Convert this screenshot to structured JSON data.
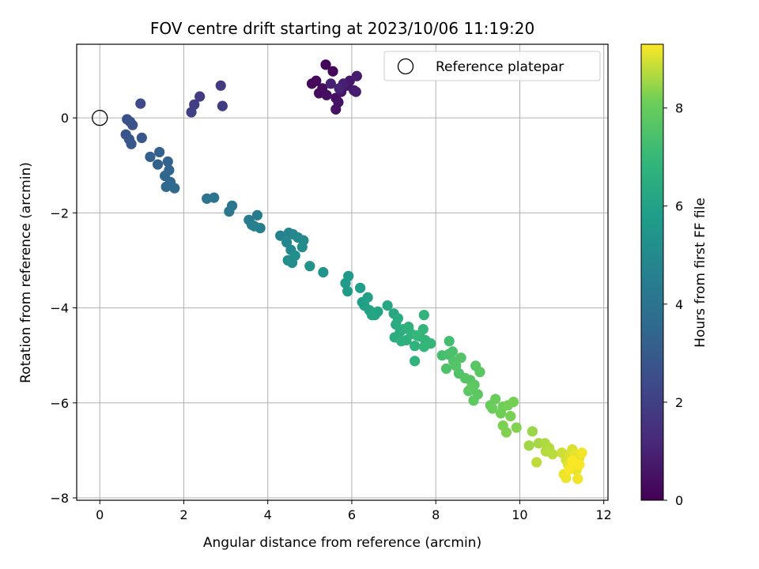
{
  "chart_data": {
    "type": "scatter",
    "title": "FOV centre drift starting at 2023/10/06 11:19:20",
    "xlabel": "Angular distance from reference (arcmin)",
    "ylabel": "Rotation from reference (arcmin)",
    "colorbar_label": "Hours from first FF file",
    "xlim": [
      -0.55,
      12.1
    ],
    "ylim": [
      -8.05,
      1.55
    ],
    "clim": [
      0,
      9.3
    ],
    "x_ticks": [
      0,
      2,
      4,
      6,
      8,
      10,
      12
    ],
    "y_ticks": [
      -8,
      -6,
      -4,
      -2,
      0
    ],
    "colorbar_ticks": [
      0,
      2,
      4,
      6,
      8
    ],
    "grid": true,
    "colormap": "viridis",
    "legend": {
      "placement": "top-right",
      "entries": [
        {
          "label": "Reference platepar",
          "marker": "open-circle",
          "color": "#000000"
        }
      ]
    },
    "reference_point": {
      "x": 0,
      "y": 0
    },
    "points": [
      {
        "x": 5.38,
        "y": 1.12,
        "t": 0.1
      },
      {
        "x": 5.55,
        "y": 0.98,
        "t": 0.15
      },
      {
        "x": 5.05,
        "y": 0.72,
        "t": 0.2
      },
      {
        "x": 5.15,
        "y": 0.78,
        "t": 0.25
      },
      {
        "x": 5.3,
        "y": 0.62,
        "t": 0.3
      },
      {
        "x": 5.22,
        "y": 0.52,
        "t": 0.35
      },
      {
        "x": 5.4,
        "y": 0.48,
        "t": 0.4
      },
      {
        "x": 5.62,
        "y": 0.42,
        "t": 0.45
      },
      {
        "x": 5.68,
        "y": 0.33,
        "t": 0.5
      },
      {
        "x": 5.62,
        "y": 0.18,
        "t": 0.55
      },
      {
        "x": 5.75,
        "y": 0.55,
        "t": 0.6
      },
      {
        "x": 5.88,
        "y": 0.68,
        "t": 0.65
      },
      {
        "x": 5.95,
        "y": 0.78,
        "t": 0.7
      },
      {
        "x": 6.05,
        "y": 0.58,
        "t": 0.75
      },
      {
        "x": 6.12,
        "y": 0.88,
        "t": 0.8
      },
      {
        "x": 6.1,
        "y": 0.55,
        "t": 0.85
      },
      {
        "x": 5.8,
        "y": 0.72,
        "t": 0.9
      },
      {
        "x": 5.5,
        "y": 0.72,
        "t": 0.95
      },
      {
        "x": 5.7,
        "y": 0.62,
        "t": 1.0
      },
      {
        "x": 2.88,
        "y": 0.68,
        "t": 1.8
      },
      {
        "x": 2.92,
        "y": 0.25,
        "t": 1.85
      },
      {
        "x": 2.38,
        "y": 0.45,
        "t": 1.9
      },
      {
        "x": 2.25,
        "y": 0.28,
        "t": 1.95
      },
      {
        "x": 2.18,
        "y": 0.12,
        "t": 2.0
      },
      {
        "x": 0.97,
        "y": 0.3,
        "t": 2.4
      },
      {
        "x": 0.65,
        "y": -0.03,
        "t": 2.6
      },
      {
        "x": 0.72,
        "y": -0.08,
        "t": 2.65
      },
      {
        "x": 0.78,
        "y": -0.15,
        "t": 2.7
      },
      {
        "x": 0.62,
        "y": -0.35,
        "t": 2.75
      },
      {
        "x": 0.7,
        "y": -0.45,
        "t": 2.8
      },
      {
        "x": 0.75,
        "y": -0.55,
        "t": 2.85
      },
      {
        "x": 1.0,
        "y": -0.42,
        "t": 2.9
      },
      {
        "x": 1.2,
        "y": -0.82,
        "t": 3.2
      },
      {
        "x": 1.42,
        "y": -0.72,
        "t": 3.25
      },
      {
        "x": 1.38,
        "y": -0.98,
        "t": 3.3
      },
      {
        "x": 1.62,
        "y": -0.92,
        "t": 3.35
      },
      {
        "x": 1.65,
        "y": -1.1,
        "t": 3.4
      },
      {
        "x": 1.55,
        "y": -1.22,
        "t": 3.45
      },
      {
        "x": 1.68,
        "y": -1.35,
        "t": 3.5
      },
      {
        "x": 1.58,
        "y": -1.45,
        "t": 3.55
      },
      {
        "x": 1.78,
        "y": -1.48,
        "t": 3.6
      },
      {
        "x": 2.55,
        "y": -1.7,
        "t": 3.95
      },
      {
        "x": 2.72,
        "y": -1.68,
        "t": 4.0
      },
      {
        "x": 3.15,
        "y": -1.85,
        "t": 4.1
      },
      {
        "x": 3.08,
        "y": -1.97,
        "t": 4.15
      },
      {
        "x": 3.55,
        "y": -2.15,
        "t": 4.35
      },
      {
        "x": 3.75,
        "y": -2.05,
        "t": 4.4
      },
      {
        "x": 3.62,
        "y": -2.25,
        "t": 4.45
      },
      {
        "x": 3.82,
        "y": -2.32,
        "t": 4.5
      },
      {
        "x": 3.68,
        "y": -2.28,
        "t": 4.55
      },
      {
        "x": 4.3,
        "y": -2.48,
        "t": 4.7
      },
      {
        "x": 4.5,
        "y": -2.42,
        "t": 4.75
      },
      {
        "x": 4.6,
        "y": -2.45,
        "t": 4.8
      },
      {
        "x": 4.45,
        "y": -2.62,
        "t": 4.85
      },
      {
        "x": 4.55,
        "y": -2.78,
        "t": 4.9
      },
      {
        "x": 4.72,
        "y": -2.52,
        "t": 4.95
      },
      {
        "x": 4.85,
        "y": -2.58,
        "t": 5.0
      },
      {
        "x": 4.82,
        "y": -2.72,
        "t": 5.05
      },
      {
        "x": 4.48,
        "y": -3.0,
        "t": 5.1
      },
      {
        "x": 4.58,
        "y": -3.05,
        "t": 5.15
      },
      {
        "x": 4.65,
        "y": -2.9,
        "t": 5.2
      },
      {
        "x": 5.0,
        "y": -3.12,
        "t": 5.3
      },
      {
        "x": 5.32,
        "y": -3.25,
        "t": 5.4
      },
      {
        "x": 5.92,
        "y": -3.33,
        "t": 5.6
      },
      {
        "x": 5.85,
        "y": -3.48,
        "t": 5.65
      },
      {
        "x": 5.9,
        "y": -3.65,
        "t": 5.7
      },
      {
        "x": 6.2,
        "y": -3.58,
        "t": 5.8
      },
      {
        "x": 6.25,
        "y": -3.88,
        "t": 5.85
      },
      {
        "x": 6.3,
        "y": -3.95,
        "t": 5.9
      },
      {
        "x": 6.38,
        "y": -3.78,
        "t": 5.95
      },
      {
        "x": 6.42,
        "y": -4.05,
        "t": 6.0
      },
      {
        "x": 6.55,
        "y": -4.15,
        "t": 6.05
      },
      {
        "x": 6.62,
        "y": -4.08,
        "t": 6.1
      },
      {
        "x": 6.48,
        "y": -4.15,
        "t": 6.15
      },
      {
        "x": 6.85,
        "y": -3.95,
        "t": 6.25
      },
      {
        "x": 7.0,
        "y": -4.12,
        "t": 6.3
      },
      {
        "x": 7.1,
        "y": -4.22,
        "t": 6.35
      },
      {
        "x": 7.05,
        "y": -4.35,
        "t": 6.4
      },
      {
        "x": 7.15,
        "y": -4.5,
        "t": 6.45
      },
      {
        "x": 7.02,
        "y": -4.62,
        "t": 6.5
      },
      {
        "x": 7.22,
        "y": -4.45,
        "t": 6.55
      },
      {
        "x": 7.3,
        "y": -4.68,
        "t": 6.6
      },
      {
        "x": 7.18,
        "y": -4.7,
        "t": 6.62
      },
      {
        "x": 7.35,
        "y": -4.4,
        "t": 6.65
      },
      {
        "x": 7.42,
        "y": -4.55,
        "t": 6.7
      },
      {
        "x": 7.5,
        "y": -4.8,
        "t": 6.72
      },
      {
        "x": 7.62,
        "y": -4.6,
        "t": 6.75
      },
      {
        "x": 7.5,
        "y": -5.12,
        "t": 6.78
      },
      {
        "x": 7.72,
        "y": -4.15,
        "t": 6.8
      },
      {
        "x": 7.7,
        "y": -4.45,
        "t": 6.85
      },
      {
        "x": 7.75,
        "y": -4.68,
        "t": 6.88
      },
      {
        "x": 7.72,
        "y": -4.82,
        "t": 6.9
      },
      {
        "x": 7.88,
        "y": -4.75,
        "t": 6.95
      },
      {
        "x": 7.55,
        "y": -4.58,
        "t": 6.98
      },
      {
        "x": 8.32,
        "y": -4.7,
        "t": 7.3
      },
      {
        "x": 8.15,
        "y": -5.0,
        "t": 7.35
      },
      {
        "x": 8.3,
        "y": -4.98,
        "t": 7.4
      },
      {
        "x": 8.4,
        "y": -4.92,
        "t": 7.45
      },
      {
        "x": 8.25,
        "y": -5.28,
        "t": 7.5
      },
      {
        "x": 8.42,
        "y": -5.12,
        "t": 7.52
      },
      {
        "x": 8.55,
        "y": -5.38,
        "t": 7.55
      },
      {
        "x": 8.6,
        "y": -5.05,
        "t": 7.6
      },
      {
        "x": 8.48,
        "y": -5.22,
        "t": 7.62
      },
      {
        "x": 8.7,
        "y": -5.48,
        "t": 7.65
      },
      {
        "x": 8.82,
        "y": -5.52,
        "t": 7.68
      },
      {
        "x": 8.95,
        "y": -5.22,
        "t": 7.7
      },
      {
        "x": 9.05,
        "y": -5.35,
        "t": 7.72
      },
      {
        "x": 8.78,
        "y": -5.75,
        "t": 7.75
      },
      {
        "x": 8.92,
        "y": -5.62,
        "t": 7.78
      },
      {
        "x": 9.0,
        "y": -5.82,
        "t": 7.8
      },
      {
        "x": 8.9,
        "y": -5.95,
        "t": 7.82
      },
      {
        "x": 8.85,
        "y": -5.68,
        "t": 7.84
      },
      {
        "x": 9.3,
        "y": -6.05,
        "t": 8.0
      },
      {
        "x": 9.42,
        "y": -5.92,
        "t": 8.05
      },
      {
        "x": 9.35,
        "y": -6.12,
        "t": 8.08
      },
      {
        "x": 9.6,
        "y": -6.08,
        "t": 8.12
      },
      {
        "x": 9.55,
        "y": -6.22,
        "t": 8.15
      },
      {
        "x": 9.72,
        "y": -6.05,
        "t": 8.18
      },
      {
        "x": 9.85,
        "y": -5.98,
        "t": 8.2
      },
      {
        "x": 9.78,
        "y": -6.28,
        "t": 8.22
      },
      {
        "x": 9.6,
        "y": -6.48,
        "t": 8.25
      },
      {
        "x": 9.68,
        "y": -6.62,
        "t": 8.28
      },
      {
        "x": 9.92,
        "y": -6.52,
        "t": 8.3
      },
      {
        "x": 10.3,
        "y": -6.6,
        "t": 8.5
      },
      {
        "x": 10.22,
        "y": -6.9,
        "t": 8.55
      },
      {
        "x": 10.45,
        "y": -6.85,
        "t": 8.6
      },
      {
        "x": 10.6,
        "y": -6.85,
        "t": 8.65
      },
      {
        "x": 10.7,
        "y": -6.95,
        "t": 8.7
      },
      {
        "x": 10.62,
        "y": -7.02,
        "t": 8.72
      },
      {
        "x": 10.78,
        "y": -7.08,
        "t": 8.75
      },
      {
        "x": 10.4,
        "y": -7.25,
        "t": 8.78
      },
      {
        "x": 11.0,
        "y": -7.05,
        "t": 8.9
      },
      {
        "x": 11.1,
        "y": -7.2,
        "t": 8.95
      },
      {
        "x": 11.2,
        "y": -7.08,
        "t": 9.0
      },
      {
        "x": 11.25,
        "y": -6.98,
        "t": 9.02
      },
      {
        "x": 11.15,
        "y": -7.3,
        "t": 9.05
      },
      {
        "x": 11.32,
        "y": -7.35,
        "t": 9.08
      },
      {
        "x": 11.42,
        "y": -7.15,
        "t": 9.1
      },
      {
        "x": 11.3,
        "y": -7.1,
        "t": 9.12
      },
      {
        "x": 11.35,
        "y": -7.42,
        "t": 9.14
      },
      {
        "x": 11.05,
        "y": -7.5,
        "t": 9.16
      },
      {
        "x": 11.1,
        "y": -7.58,
        "t": 9.18
      },
      {
        "x": 11.38,
        "y": -7.6,
        "t": 9.2
      },
      {
        "x": 11.48,
        "y": -7.05,
        "t": 9.22
      },
      {
        "x": 11.18,
        "y": -7.4,
        "t": 9.24
      },
      {
        "x": 11.42,
        "y": -7.3,
        "t": 9.26
      },
      {
        "x": 11.25,
        "y": -7.22,
        "t": 9.28
      }
    ]
  }
}
